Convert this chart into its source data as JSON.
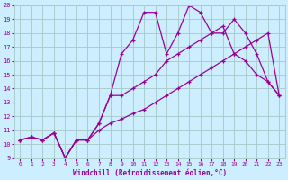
{
  "xlabel": "Windchill (Refroidissement éolien,°C)",
  "bg_color": "#cceeff",
  "grid_color": "#aacccc",
  "line_color": "#990099",
  "xlim": [
    -0.5,
    23.5
  ],
  "ylim": [
    9,
    20
  ],
  "xticks": [
    0,
    1,
    2,
    3,
    4,
    5,
    6,
    7,
    8,
    9,
    10,
    11,
    12,
    13,
    14,
    15,
    16,
    17,
    18,
    19,
    20,
    21,
    22,
    23
  ],
  "yticks": [
    9,
    10,
    11,
    12,
    13,
    14,
    15,
    16,
    17,
    18,
    19,
    20
  ],
  "line1_x": [
    0,
    1,
    2,
    3,
    4,
    5,
    6,
    7,
    8,
    9,
    10,
    11,
    12,
    13,
    14,
    15,
    16,
    17,
    18,
    19,
    20,
    21,
    22,
    23
  ],
  "line1_y": [
    10.3,
    10.5,
    10.3,
    10.8,
    9.0,
    10.3,
    10.3,
    11.0,
    11.5,
    11.8,
    12.2,
    12.5,
    13.0,
    13.5,
    14.0,
    14.5,
    15.0,
    15.5,
    16.0,
    16.5,
    17.0,
    17.5,
    18.0,
    13.5
  ],
  "line2_x": [
    0,
    1,
    2,
    3,
    4,
    5,
    6,
    7,
    8,
    9,
    10,
    11,
    12,
    13,
    14,
    15,
    16,
    17,
    18,
    19,
    20,
    21,
    22,
    23
  ],
  "line2_y": [
    10.3,
    10.5,
    10.3,
    10.8,
    9.0,
    10.3,
    10.3,
    11.5,
    13.5,
    16.5,
    17.5,
    19.5,
    19.5,
    16.5,
    18.0,
    20.0,
    19.5,
    18.0,
    18.0,
    19.0,
    18.0,
    16.5,
    14.5,
    13.5
  ],
  "line3_x": [
    0,
    1,
    2,
    3,
    4,
    5,
    6,
    7,
    8,
    9,
    10,
    11,
    12,
    13,
    14,
    15,
    16,
    17,
    18,
    19,
    20,
    21,
    22,
    23
  ],
  "line3_y": [
    10.3,
    10.5,
    10.3,
    10.8,
    9.0,
    10.3,
    10.3,
    11.5,
    13.5,
    13.5,
    14.0,
    14.5,
    15.0,
    16.0,
    16.5,
    17.0,
    17.5,
    18.0,
    18.5,
    16.5,
    16.0,
    15.0,
    14.5,
    13.5
  ]
}
